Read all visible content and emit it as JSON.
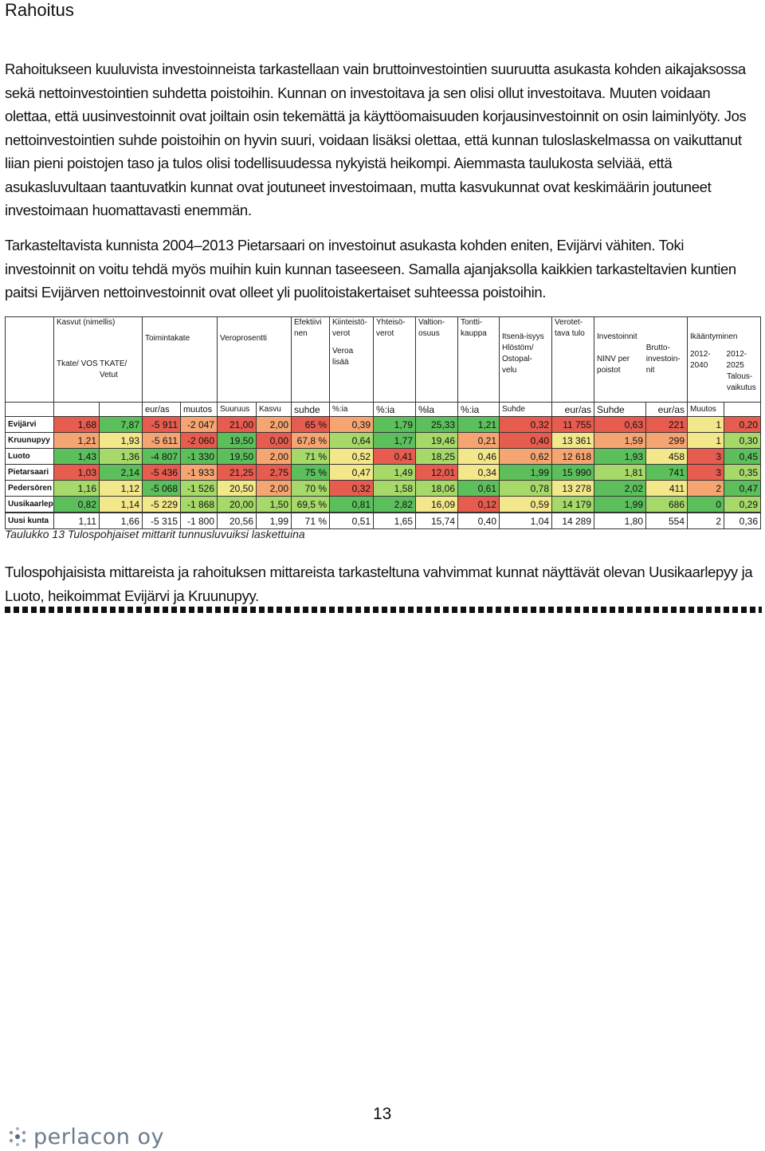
{
  "heading": "Rahoitus",
  "paragraphs": [
    "Rahoitukseen kuuluvista investoinneista tarkastellaan vain bruttoinvestointien suuruutta asukasta kohden aikajaksossa sekä nettoinvestointien suhdetta poistoihin. Kunnan on investoitava ja sen olisi ollut investoitava. Muuten voidaan olettaa, että uusinvestoinnit ovat joiltain osin tekemättä ja käyttöomaisuuden korjausinvestoinnit on osin laiminlyöty. Jos nettoinvestointien suhde poistoihin on hyvin suuri, voidaan lisäksi olettaa, että kunnan tuloslaskelmassa on vaikuttanut liian pieni poistojen taso ja tulos olisi todellisuudessa nykyistä heikompi. Aiemmasta taulukosta selviää, että asukasluvultaan taantuvatkin kunnat ovat joutuneet investoimaan, mutta kasvukunnat ovat keskimäärin joutuneet investoimaan huomattavasti enemmän.",
    "Tarkasteltavista kunnista 2004–2013 Pietarsaari on investoinut asukasta kohden eniten, Evijärvi vähiten. Toki investoinnit on voitu tehdä myös muihin kuin kunnan taseeseen. Samalla ajanjaksolla kaikkien tarkasteltavien kuntien paitsi Evijärven nettoinvestoinnit ovat olleet yli puolitoistakertaiset suhteessa poistoihin.",
    "Tulospohjaisista mittareista ja rahoituksen mittareista tarkasteltuna vahvimmat kunnat näyttävät olevan Uusikaarlepyy ja Luoto, heikoimmat Evijärvi ja Kruunupyy."
  ],
  "table": {
    "header_top": [
      "Kasvut (nimellis)",
      "Toimintakate",
      "Veroprosentti",
      "Efektiivi nen",
      "Kiinteistö-verot",
      "Yhteisö-verot",
      "Valtion-osuus",
      "Tontti-kauppa",
      "Itsenä-isyys",
      "Verotet-tava tulo",
      "Investoinnit",
      "Ikääntyminen"
    ],
    "header_mid": [
      "Veroa lisää",
      "Hlöstöm/ Ostopal-velu",
      "NINV per poistot",
      "Brutto-investoin-nit",
      "2012- 2040",
      "2012- 2025"
    ],
    "header_sub": [
      "Tkate/ VOS",
      "TKATE/ Vetut",
      "Talous-vaikutus"
    ],
    "units": [
      "",
      "",
      "",
      "eur/as",
      "muutos",
      "Suuruus",
      "Kasvu",
      "suhde",
      "%:ia",
      "%:ia",
      "%la",
      "%:ia",
      "Suhde",
      "eur/as",
      "Suhde",
      "eur/as",
      "Muutos",
      ""
    ],
    "rows": [
      {
        "label": "Evijärvi",
        "cells": [
          "1,68",
          "7,87",
          "-5 911",
          "-2 047",
          "21,00",
          "2,00",
          "65 %",
          "0,39",
          "1,79",
          "25,33",
          "1,21",
          "0,32",
          "11 755",
          "0,63",
          "221",
          "1",
          "0,20"
        ]
      },
      {
        "label": "Kruunupyy",
        "cells": [
          "1,21",
          "1,93",
          "-5 611",
          "-2 060",
          "19,50",
          "0,00",
          "67,8 %",
          "0,64",
          "1,77",
          "19,46",
          "0,21",
          "0,40",
          "13 361",
          "1,59",
          "299",
          "1",
          "0,30"
        ]
      },
      {
        "label": "Luoto",
        "cells": [
          "1,43",
          "1,36",
          "-4 807",
          "-1 330",
          "19,50",
          "2,00",
          "71 %",
          "0,52",
          "0,41",
          "18,25",
          "0,46",
          "0,62",
          "12 618",
          "1,93",
          "458",
          "3",
          "0,45"
        ]
      },
      {
        "label": "Pietarsaari",
        "cells": [
          "1,03",
          "2,14",
          "-5 436",
          "-1 933",
          "21,25",
          "2,75",
          "75 %",
          "0,47",
          "1,49",
          "12,01",
          "0,34",
          "1,99",
          "15 990",
          "1,81",
          "741",
          "3",
          "0,35"
        ]
      },
      {
        "label": "Pedersören",
        "cells": [
          "1,16",
          "1,12",
          "-5 068",
          "-1 526",
          "20,50",
          "2,00",
          "70 %",
          "0,32",
          "1,58",
          "18,06",
          "0,61",
          "0,78",
          "13 278",
          "2,02",
          "411",
          "2",
          "0,47"
        ]
      },
      {
        "label": "Uusikaarlep",
        "cells": [
          "0,82",
          "1,14",
          "-5 229",
          "-1 868",
          "20,00",
          "1,50",
          "69,5 %",
          "0,81",
          "2,82",
          "16,09",
          "0,12",
          "0,59",
          "14 179",
          "1,99",
          "686",
          "0",
          "0,29"
        ]
      },
      {
        "label": "Uusi kunta",
        "cells": [
          "1,11",
          "1,66",
          "-5 315",
          "-1 800",
          "20,56",
          "1,99",
          "71 %",
          "0,51",
          "1,65",
          "15,74",
          "0,40",
          "1,04",
          "14 289",
          "1,80",
          "554",
          "2",
          "0,36"
        ]
      }
    ],
    "colors": [
      [
        "cr",
        "cg",
        "cr",
        "co",
        "cr",
        "co",
        "cr",
        "co",
        "cg",
        "cg",
        "cg",
        "cr",
        "cr",
        "cr",
        "cr",
        "cy",
        "cr"
      ],
      [
        "co",
        "cy",
        "co",
        "cr",
        "cg",
        "cr",
        "co",
        "cl",
        "cg",
        "cl",
        "co",
        "cr",
        "cy",
        "co",
        "co",
        "cy",
        "cl"
      ],
      [
        "cg",
        "cl",
        "cg",
        "cg",
        "cg",
        "co",
        "cl",
        "cy",
        "cr",
        "cl",
        "cy",
        "co",
        "co",
        "cg",
        "cy",
        "cr",
        "cg"
      ],
      [
        "cr",
        "cg",
        "cr",
        "co",
        "cr",
        "cr",
        "cg",
        "cy",
        "cl",
        "cr",
        "cy",
        "cg",
        "cg",
        "cl",
        "cg",
        "cr",
        "cl"
      ],
      [
        "cl",
        "cy",
        "cg",
        "cl",
        "cy",
        "co",
        "cl",
        "cr",
        "cl",
        "cl",
        "cg",
        "cl",
        "cy",
        "cg",
        "cy",
        "co",
        "cg"
      ],
      [
        "cg",
        "cy",
        "cy",
        "cl",
        "cl",
        "cl",
        "cl",
        "cg",
        "cg",
        "cy",
        "cr",
        "cy",
        "cl",
        "cg",
        "cl",
        "cg",
        "cl"
      ],
      [
        "cw",
        "cw",
        "cw",
        "cw",
        "cw",
        "cw",
        "cw",
        "cw",
        "cw",
        "cw",
        "cw",
        "cw",
        "cw",
        "cw",
        "cw",
        "cw",
        "cw"
      ]
    ]
  },
  "caption": "Taulukko 13 Tulospohjaiset mittarit tunnusluvuiksi laskettuina",
  "page_number": "13",
  "logo_text": "perlacon oy"
}
